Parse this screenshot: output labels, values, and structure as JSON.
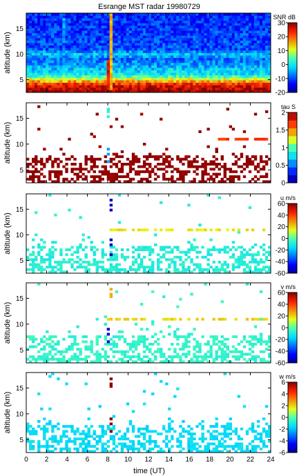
{
  "title": "Esrange MST radar 19980729",
  "chart_data": [
    {
      "type": "heatmap",
      "ylabel": "altitude (km)",
      "colorbar_label": "SNR dB",
      "colorbar_ticks": [
        "30",
        "20",
        "10",
        "0",
        "-10",
        "-20"
      ],
      "clim": [
        -20,
        30
      ],
      "xlim": [
        0,
        24
      ],
      "ylim": [
        2.5,
        18
      ],
      "yticks": [
        "15",
        "10",
        "5"
      ],
      "colormap": "jet",
      "fill": "dense",
      "profile": [
        [
          2.5,
          30
        ],
        [
          4,
          25
        ],
        [
          5,
          12
        ],
        [
          6,
          0
        ],
        [
          9,
          -8
        ],
        [
          10,
          -3
        ],
        [
          11,
          -10
        ],
        [
          18,
          -12
        ]
      ],
      "features": [
        {
          "kind": "vertical_streak",
          "x": 8.3,
          "altitude_range": [
            3,
            18
          ],
          "value": 15
        },
        {
          "kind": "vertical_streak",
          "x": 7.8,
          "altitude_range": [
            3,
            9
          ],
          "value": 25
        },
        {
          "kind": "vertical_streak",
          "x": 3.5,
          "altitude_range": [
            12,
            17
          ],
          "value": -5
        }
      ]
    },
    {
      "type": "heatmap",
      "ylabel": "altitude (km)",
      "colorbar_label": "tau S",
      "colorbar_ticks": [
        "2",
        "1.5",
        "1",
        "0.5",
        "0"
      ],
      "clim": [
        0,
        2
      ],
      "xlim": [
        0,
        24
      ],
      "ylim": [
        2.5,
        18
      ],
      "yticks": [
        "15",
        "10",
        "5"
      ],
      "colormap": "jet_stepped",
      "fill": "sparse",
      "typical_value": 2,
      "features": [
        {
          "kind": "points",
          "x": 8.0,
          "altitudes": [
            17,
            16.2,
            15.4
          ],
          "value": 0.9
        },
        {
          "kind": "points",
          "x": 7.9,
          "altitudes": [
            9,
            8.2,
            6.5
          ],
          "value": 0.6
        },
        {
          "kind": "band",
          "x_range": [
            18.5,
            23.8
          ],
          "altitude": 11,
          "value": 1.7
        }
      ]
    },
    {
      "type": "heatmap",
      "ylabel": "altitude (km)",
      "colorbar_label": "u m/s",
      "colorbar_ticks": [
        "60",
        "40",
        "20",
        "0",
        "-20",
        "-40",
        "-60"
      ],
      "clim": [
        -60,
        60
      ],
      "xlim": [
        0,
        24
      ],
      "ylim": [
        2.5,
        18
      ],
      "yticks": [
        "15",
        "10",
        "5"
      ],
      "colormap": "jet",
      "fill": "sparse",
      "typical_value": -8,
      "features": [
        {
          "kind": "band",
          "x_range": [
            8,
            24
          ],
          "altitude": 10.8,
          "value": 18
        },
        {
          "kind": "points",
          "x": 8.1,
          "altitudes": [
            17,
            16,
            14.8,
            9,
            8.2,
            6.3
          ],
          "value": -55
        }
      ]
    },
    {
      "type": "heatmap",
      "ylabel": "altitude (km)",
      "colorbar_label": "v m/s",
      "colorbar_ticks": [
        "60",
        "40",
        "20",
        "0",
        "-20",
        "-40",
        "-60"
      ],
      "clim": [
        -60,
        60
      ],
      "xlim": [
        0,
        24
      ],
      "ylim": [
        2.5,
        18
      ],
      "yticks": [
        "15",
        "10",
        "5"
      ],
      "colormap": "jet",
      "fill": "sparse",
      "typical_value": -5,
      "features": [
        {
          "kind": "band",
          "x_range": [
            8,
            24
          ],
          "altitude": 10.8,
          "value": 20
        },
        {
          "kind": "points",
          "x": 8.1,
          "altitudes": [
            17,
            16,
            15.3
          ],
          "value": 25
        },
        {
          "kind": "points",
          "x": 7.9,
          "altitudes": [
            9,
            8,
            6.5
          ],
          "value": -50
        }
      ]
    },
    {
      "type": "heatmap",
      "ylabel": "altitude (km)",
      "xlabel": "time (UT)",
      "colorbar_label": "w m/s",
      "colorbar_ticks": [
        "6",
        "4",
        "2",
        "0",
        "-2",
        "-4",
        "-6"
      ],
      "clim": [
        -6,
        6
      ],
      "xlim": [
        0,
        24
      ],
      "ylim": [
        2.5,
        18
      ],
      "yticks": [
        "15",
        "10",
        "5"
      ],
      "xticks": [
        "0",
        "2",
        "4",
        "6",
        "8",
        "10",
        "12",
        "14",
        "16",
        "18",
        "20",
        "22",
        "24"
      ],
      "colormap": "jet",
      "fill": "sparse",
      "typical_value": -1.5,
      "features": [
        {
          "kind": "points",
          "x": 8.1,
          "altitudes": [
            17,
            16,
            15.3,
            9,
            8,
            6.5
          ],
          "value": 6
        }
      ]
    }
  ]
}
